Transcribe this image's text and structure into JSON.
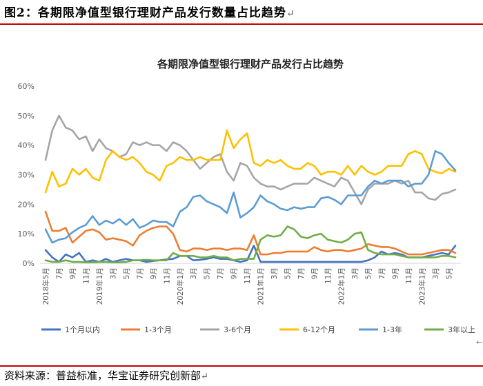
{
  "figure": {
    "title": "图2：各期限净值型银行理财产品发行数量占比趋势",
    "title_mark": "↵",
    "source": "资料来源：普益标准，华宝证券研究创新部",
    "source_mark": "↵",
    "corner_mark": "←"
  },
  "chart_data": {
    "type": "line",
    "title": "各期限净值型银行理财产品发行占比趋势",
    "xlabel": "",
    "ylabel": "",
    "ylim": [
      0,
      60
    ],
    "yticks": [
      "0%",
      "10%",
      "20%",
      "30%",
      "40%",
      "50%",
      "60%"
    ],
    "x": [
      "2018年5月",
      "2018年6月",
      "2018年7月",
      "2018年8月",
      "2018年9月",
      "2018年10月",
      "2018年11月",
      "2018年12月",
      "2019年1月",
      "2019年2月",
      "2019年3月",
      "2019年4月",
      "2019年5月",
      "2019年6月",
      "2019年7月",
      "2019年8月",
      "2019年9月",
      "2019年10月",
      "2019年11月",
      "2019年12月",
      "2020年1月",
      "2020年2月",
      "2020年3月",
      "2020年4月",
      "2020年5月",
      "2020年6月",
      "2020年7月",
      "2020年8月",
      "2020年9月",
      "2020年10月",
      "2020年11月",
      "2020年12月",
      "2021年1月",
      "2021年2月",
      "2021年3月",
      "2021年4月",
      "2021年5月",
      "2021年6月",
      "2021年7月",
      "2021年8月",
      "2021年9月",
      "2021年10月",
      "2021年11月",
      "2021年12月",
      "2022年1月",
      "2022年2月",
      "2022年3月",
      "2022年4月",
      "2022年5月",
      "2022年6月",
      "2022年7月",
      "2022年8月",
      "2022年9月",
      "2022年10月",
      "2022年11月",
      "2022年12月",
      "2023年1月",
      "2023年2月",
      "2023年3月",
      "2023年4月",
      "2023年5月",
      "2023年6月"
    ],
    "xtick_labels": [
      "2018年5月",
      "7月",
      "9月",
      "11月",
      "2019年1月",
      "3月",
      "5月",
      "7月",
      "9月",
      "11月",
      "2020年1月",
      "3月",
      "5月",
      "7月",
      "9月",
      "11月",
      "2021年1月",
      "3月",
      "5月",
      "7月",
      "9月",
      "11月",
      "2022年1月",
      "3月",
      "5月",
      "7月",
      "9月",
      "11月",
      "2023年1月",
      "3月",
      "5月"
    ],
    "legend_position": "bottom",
    "grid": false,
    "series": [
      {
        "name": "1个月以内",
        "color": "#4472c4",
        "values": [
          4.5,
          2,
          0.5,
          3,
          2,
          3.5,
          0.5,
          1,
          0.5,
          1.5,
          0.5,
          1,
          1.5,
          1,
          1,
          0.5,
          0.8,
          1,
          1.3,
          1.5,
          2.5,
          2.5,
          1,
          1.2,
          1.5,
          2,
          1.5,
          1.5,
          1,
          0.5,
          1,
          6,
          0.5,
          0.5,
          0.5,
          0.5,
          0.5,
          0.5,
          0.5,
          0.5,
          0.5,
          0.5,
          0.5,
          0.5,
          0.5,
          0.5,
          0.5,
          0.5,
          1,
          2,
          4,
          3,
          3.5,
          3,
          2,
          2,
          2,
          2.5,
          3,
          3.5,
          3,
          6
        ]
      },
      {
        "name": "1-3个月",
        "color": "#ed7d31",
        "values": [
          17.5,
          11,
          11,
          12,
          7,
          9,
          11,
          11.5,
          10.5,
          8,
          8.5,
          8,
          7.5,
          6,
          9.5,
          11,
          12,
          12.5,
          12.5,
          10,
          4.5,
          4,
          5,
          5,
          4.5,
          5,
          5,
          4.5,
          5,
          5,
          4.5,
          9.5,
          3,
          3,
          3.5,
          3.5,
          4,
          4,
          4,
          4,
          5.5,
          4.5,
          4,
          4.5,
          4.5,
          4,
          4.5,
          5,
          6.5,
          6,
          5.5,
          5.5,
          5,
          4,
          3,
          3,
          3,
          3.5,
          4,
          4.5,
          4.5,
          3.5
        ]
      },
      {
        "name": "3-6个月",
        "color": "#a5a5a5",
        "values": [
          35,
          45,
          50,
          46,
          45,
          42,
          43,
          38,
          42,
          39,
          38,
          36,
          37,
          41,
          40,
          41,
          40,
          40,
          38,
          41,
          40,
          38,
          35,
          32,
          34,
          36,
          37,
          31,
          28,
          34,
          33,
          29,
          27,
          26,
          26,
          25,
          26,
          27,
          27,
          27,
          29,
          28,
          27,
          26,
          29,
          28,
          24,
          20,
          25,
          27,
          27,
          27,
          28,
          27,
          28,
          24,
          24,
          22,
          21.5,
          23.5,
          24,
          25
        ]
      },
      {
        "name": "6-12个月",
        "color": "#ffc000",
        "values": [
          24,
          31,
          26,
          27,
          32,
          30,
          32,
          29,
          28,
          35,
          38,
          36,
          35,
          36,
          34,
          31,
          30,
          28,
          33,
          34,
          36,
          35,
          35,
          36,
          35,
          35,
          35,
          45,
          39,
          42,
          44,
          34,
          33,
          35,
          34,
          35,
          33,
          32,
          32,
          34,
          33,
          30,
          31,
          31,
          30,
          33,
          30,
          33,
          31,
          30,
          31,
          33,
          33,
          33,
          37,
          38,
          37,
          32,
          31,
          30.5,
          32,
          31
        ]
      },
      {
        "name": "1-3年",
        "color": "#5b9bd5",
        "values": [
          11.5,
          7,
          8,
          8.5,
          10.5,
          12,
          13,
          16,
          13,
          14.5,
          13.5,
          15,
          13,
          15,
          12,
          13,
          14.5,
          14,
          14,
          12.5,
          17.5,
          19,
          22.5,
          23,
          21,
          20,
          19,
          17,
          24,
          15.5,
          17,
          19,
          23,
          21,
          20,
          18.5,
          18,
          19,
          18.5,
          19,
          19,
          22,
          22.5,
          21.5,
          20,
          23,
          23,
          23,
          26,
          28,
          27,
          28,
          28,
          28,
          26,
          27,
          27,
          30,
          38,
          37,
          34,
          31.5
        ]
      },
      {
        "name": "3年以上",
        "color": "#70ad47",
        "values": [
          1,
          0.5,
          0.5,
          1,
          0.5,
          0.5,
          0.3,
          0.3,
          0.5,
          0.5,
          0.3,
          0.3,
          0.5,
          1,
          1,
          1.2,
          1,
          1,
          1,
          3.5,
          2.5,
          2.5,
          2.5,
          2,
          2,
          2.5,
          2,
          2,
          1,
          1.5,
          1.5,
          1.5,
          8,
          9.5,
          9,
          9.5,
          12.5,
          11.5,
          9,
          8.5,
          9.5,
          10,
          8,
          7.5,
          7,
          8,
          10,
          10.5,
          4.5,
          3.5,
          3,
          3,
          3,
          2.5,
          2,
          2,
          2,
          2,
          2,
          2.5,
          2.5,
          2
        ]
      }
    ]
  }
}
